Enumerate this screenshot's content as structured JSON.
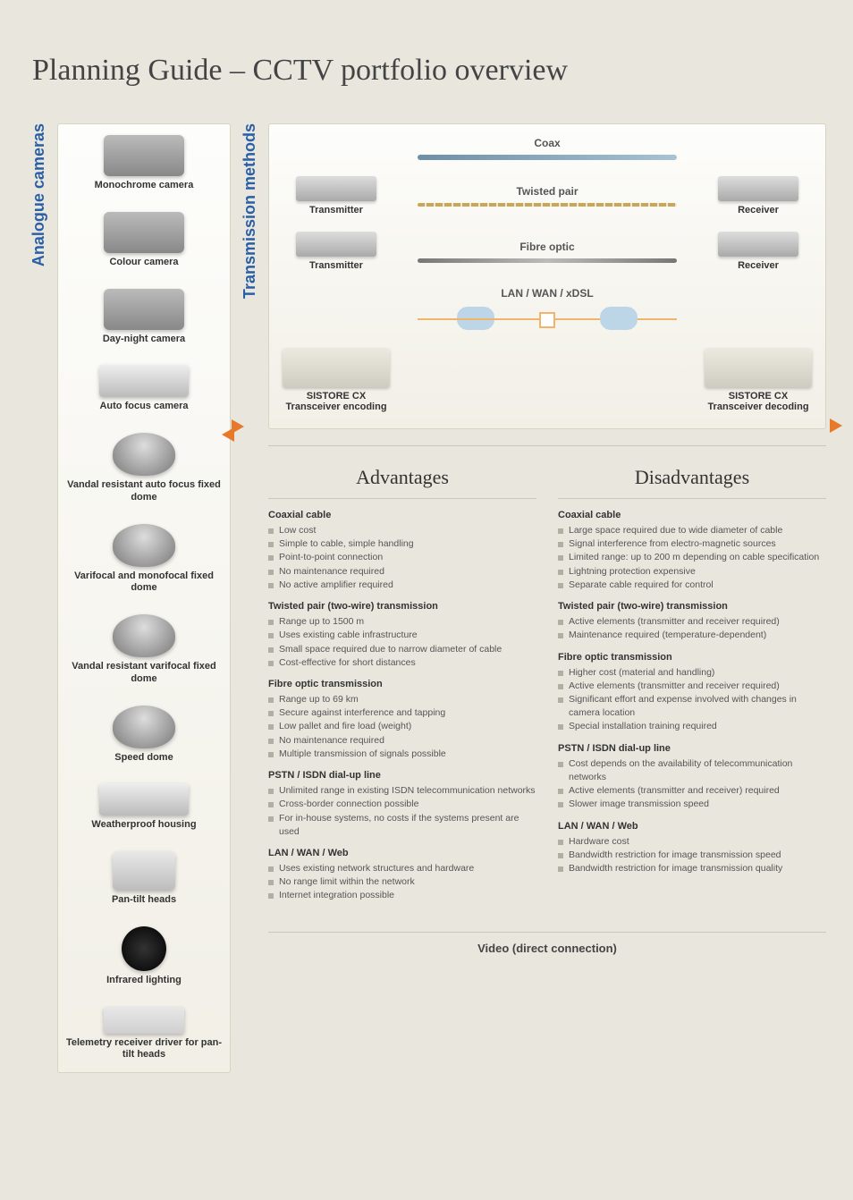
{
  "title": "Planning Guide – CCTV portfolio overview",
  "cat_left": "Analogue cameras",
  "cat_right": "Transmission methods",
  "cameras": [
    {
      "label": "Monochrome camera",
      "cls": ""
    },
    {
      "label": "Colour camera",
      "cls": ""
    },
    {
      "label": "Day-night camera",
      "cls": ""
    },
    {
      "label": "Auto focus camera",
      "cls": "housing"
    },
    {
      "label": "Vandal resistant auto focus fixed dome",
      "cls": "dome"
    },
    {
      "label": "Varifocal and monofocal fixed dome",
      "cls": "dome"
    },
    {
      "label": "Vandal resistant varifocal fixed dome",
      "cls": "dome"
    },
    {
      "label": "Speed dome",
      "cls": "dome"
    },
    {
      "label": "Weatherproof housing",
      "cls": "housing"
    },
    {
      "label": "Pan-tilt heads",
      "cls": "ptz"
    },
    {
      "label": "Infrared lighting",
      "cls": "ir"
    },
    {
      "label": "Telemetry receiver driver for pan-tilt heads",
      "cls": "board"
    }
  ],
  "trans_rows": [
    {
      "left": null,
      "link": "Coax",
      "link_cls": "coax",
      "right": null,
      "cap_pos": "top"
    },
    {
      "left": "Transmitter",
      "link": "Twisted pair",
      "link_cls": "tp",
      "right": "Receiver",
      "cap_pos": "top"
    },
    {
      "left": "Transmitter",
      "link": "Fibre optic",
      "link_cls": "fo",
      "right": "Receiver",
      "cap_pos": "top"
    },
    {
      "left": null,
      "link": "LAN / WAN / xDSL",
      "link_cls": "ip",
      "right": null,
      "cap_pos": "top"
    },
    {
      "left": "SISTORE CX Transceiver encoding",
      "left_img": "rack",
      "link": "",
      "link_cls": "",
      "right": "SISTORE CX Transceiver decoding",
      "right_img": "rack",
      "cap_pos": "none"
    }
  ],
  "adv_title": "Advantages",
  "dis_title": "Disadvantages",
  "sections": [
    {
      "title": "Coaxial cable",
      "adv": [
        "Low cost",
        "Simple to cable, simple handling",
        "Point-to-point connection",
        "No maintenance required",
        "No active amplifier required"
      ],
      "dis": [
        "Large space required due to wide diameter of cable",
        "Signal interference from electro-magnetic sources",
        "Limited range: up to 200 m depending on cable specification",
        "Lightning protection expensive",
        "Separate cable required for control"
      ]
    },
    {
      "title": "Twisted pair (two-wire) transmission",
      "adv": [
        "Range up to 1500 m",
        "Uses existing cable infrastructure",
        "Small space required due to narrow diameter of cable",
        "Cost-effective for short distances"
      ],
      "dis": [
        "Active elements (transmitter and receiver required)",
        "Maintenance required (temperature-dependent)"
      ]
    },
    {
      "title": "Fibre optic transmission",
      "adv": [
        "Range up to 69 km",
        "Secure against interference and tapping",
        "Low pallet and fire load (weight)",
        "No maintenance required",
        "Multiple transmission of signals possible"
      ],
      "dis": [
        "Higher cost (material and handling)",
        "Active elements (transmitter and receiver required)",
        "Significant effort and expense involved with changes in camera location",
        "Special installation training required"
      ]
    },
    {
      "title": "PSTN / ISDN dial-up line",
      "adv": [
        "Unlimited range in existing ISDN telecommunication networks",
        "Cross-border connection possible",
        "For in-house systems, no costs if the systems present are used"
      ],
      "dis": [
        "Cost depends on the availability of telecommunication networks",
        "Active elements (transmitter and receiver) required",
        "Slower image transmission speed"
      ]
    },
    {
      "title": "LAN / WAN / Web",
      "adv": [
        "Uses existing network structures and hardware",
        "No range limit within the network",
        "Internet integration possible"
      ],
      "dis": [
        "Hardware cost",
        "Bandwidth restriction for image transmission speed",
        "Bandwidth restriction for image transmission quality"
      ]
    }
  ],
  "foot": "Video (direct connection)"
}
